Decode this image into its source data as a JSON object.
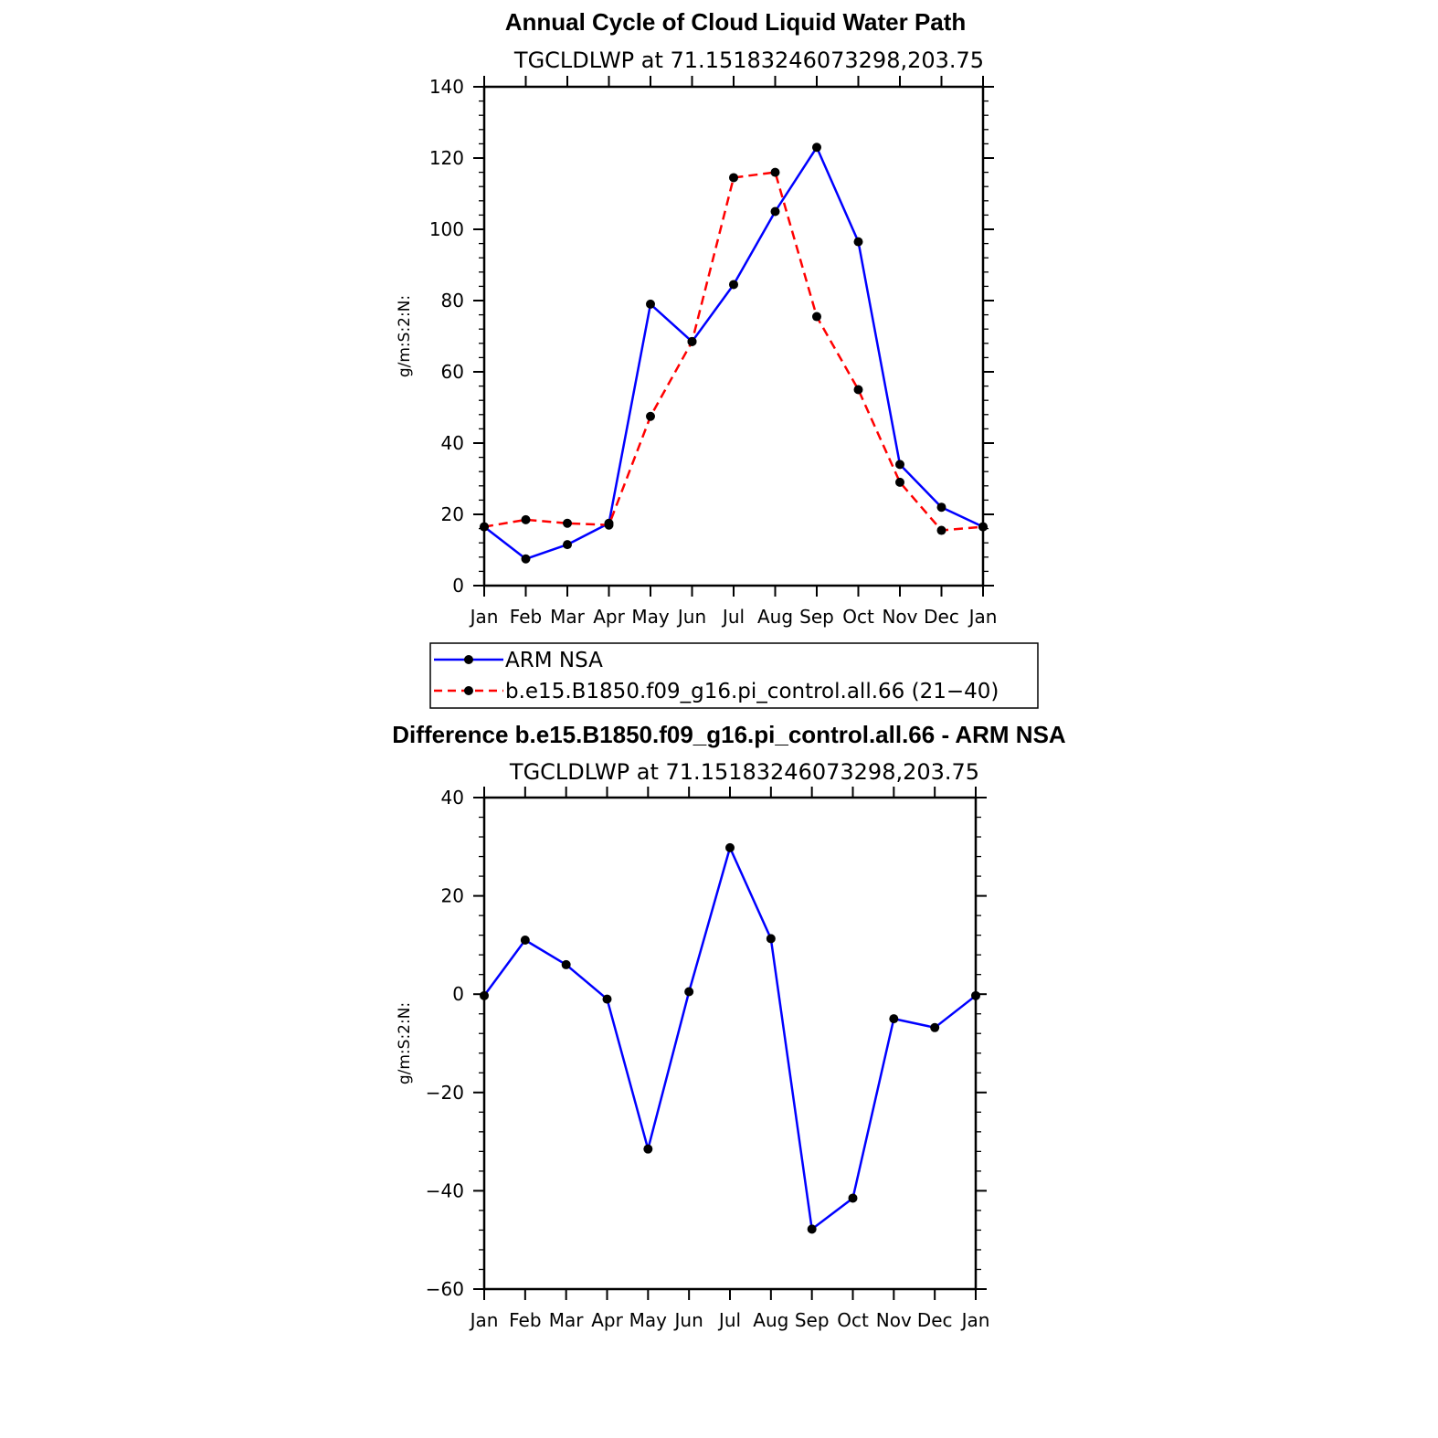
{
  "chart_data": [
    {
      "type": "line",
      "title": "Annual Cycle of Cloud Liquid Water Path",
      "subtitle": "TGCLDLWP  at  71.15183246073298,203.75",
      "ylabel": "g/m:S:2:N:",
      "xlabel": "",
      "ylim": [
        0,
        140
      ],
      "yticks": [
        0,
        20,
        40,
        60,
        80,
        100,
        120,
        140
      ],
      "categories": [
        "Jan",
        "Feb",
        "Mar",
        "Apr",
        "May",
        "Jun",
        "Jul",
        "Aug",
        "Sep",
        "Oct",
        "Nov",
        "Dec",
        "Jan"
      ],
      "grid": false,
      "legend_position": "bottom",
      "series": [
        {
          "name": "ARM  NSA",
          "color": "#0000ff",
          "dash": "solid",
          "values": [
            16.5,
            7.5,
            11.5,
            17.5,
            79,
            68.5,
            84.5,
            105,
            123,
            96.5,
            34,
            22,
            16.5
          ]
        },
        {
          "name": "b.e15.B1850.f09_g16.pi_control.all.66 (21−40)",
          "color": "#ff0000",
          "dash": "dashed",
          "values": [
            16.5,
            18.5,
            17.5,
            17,
            47.5,
            68.5,
            114.5,
            116,
            75.5,
            55,
            29,
            15.5,
            16.5
          ]
        }
      ]
    },
    {
      "type": "line",
      "title": "Difference b.e15.B1850.f09_g16.pi_control.all.66 - ARM NSA",
      "subtitle": "TGCLDLWP  at  71.15183246073298,203.75",
      "ylabel": "g/m:S:2:N:",
      "xlabel": "",
      "ylim": [
        -60,
        40
      ],
      "yticks": [
        -60,
        -40,
        -20,
        0,
        20,
        40
      ],
      "categories": [
        "Jan",
        "Feb",
        "Mar",
        "Apr",
        "May",
        "Jun",
        "Jul",
        "Aug",
        "Sep",
        "Oct",
        "Nov",
        "Dec",
        "Jan"
      ],
      "grid": false,
      "series": [
        {
          "color": "#0000ff",
          "dash": "solid",
          "values": [
            -0.3,
            11,
            6,
            -1,
            -31.5,
            0.5,
            29.8,
            11.3,
            -47.8,
            -41.5,
            -5,
            -6.8,
            -0.3
          ]
        }
      ]
    }
  ]
}
